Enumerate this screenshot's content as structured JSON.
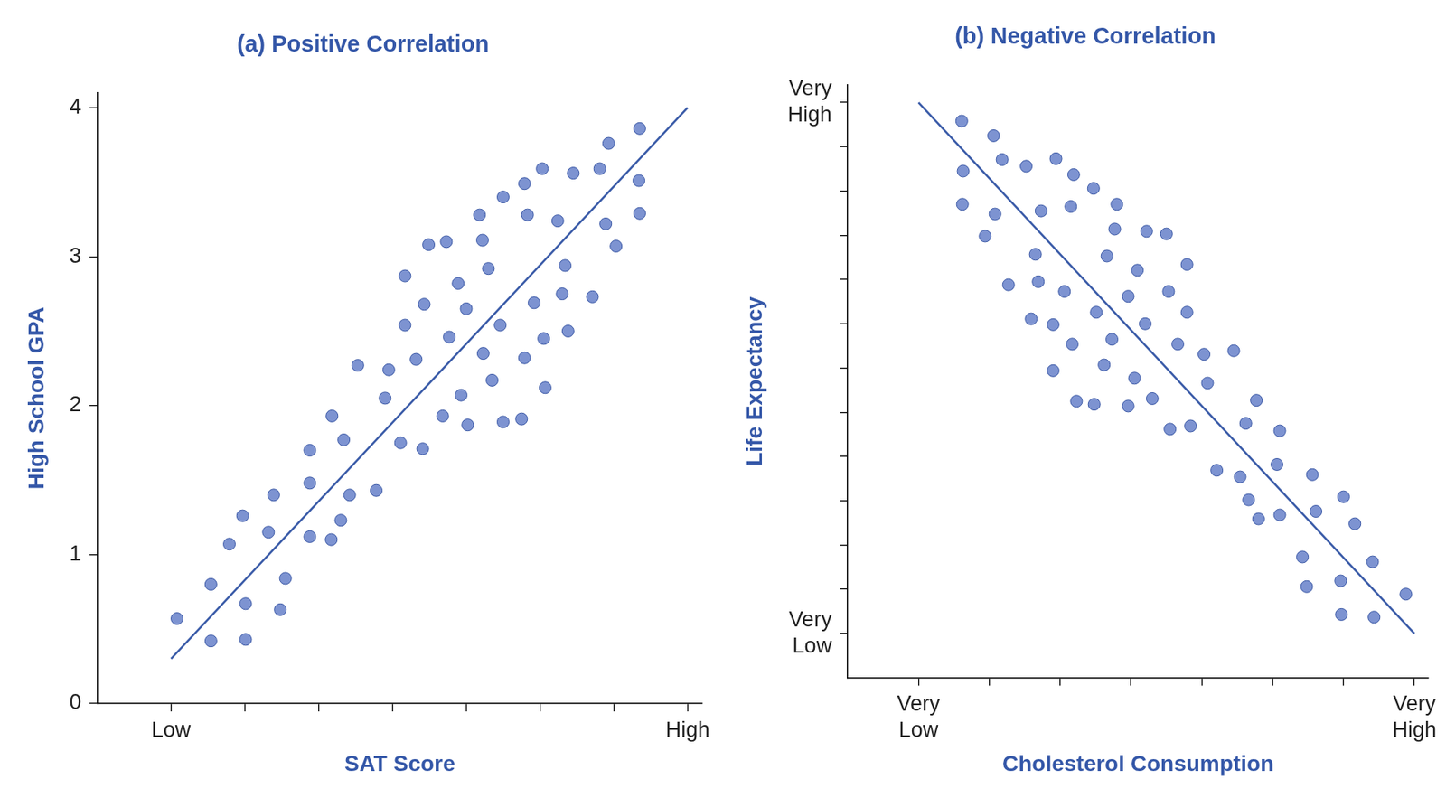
{
  "chart_data": [
    {
      "type": "scatter",
      "title": "(a) Positive Correlation",
      "x_label": "SAT Score",
      "y_label": "High School GPA",
      "xlim": [
        -1,
        7.2
      ],
      "ylim": [
        0,
        4.1
      ],
      "xticks": [
        {
          "value": 0,
          "label": "Low"
        },
        {
          "value": 1,
          "label": null
        },
        {
          "value": 2,
          "label": null
        },
        {
          "value": 3,
          "label": null
        },
        {
          "value": 4,
          "label": null
        },
        {
          "value": 5,
          "label": null
        },
        {
          "value": 6,
          "label": null
        },
        {
          "value": 7,
          "label": "High"
        }
      ],
      "yticks": [
        0,
        1,
        2,
        3,
        4
      ],
      "grid": false,
      "series": [
        {
          "type": "scatter",
          "color": "#7d93d1",
          "marker": "circle",
          "x": [
            0.08,
            0.54,
            0.54,
            0.79,
            0.97,
            1.01,
            1.01,
            1.32,
            1.39,
            1.48,
            1.55,
            1.88,
            1.88,
            1.88,
            2.17,
            2.18,
            2.3,
            2.34,
            2.42,
            2.53,
            2.78,
            2.9,
            2.95,
            3.11,
            3.17,
            3.17,
            3.32,
            3.41,
            3.43,
            3.49,
            3.68,
            3.73,
            3.77,
            3.89,
            3.93,
            4.0,
            4.02,
            4.18,
            4.22,
            4.23,
            4.3,
            4.35,
            4.46,
            4.5,
            4.5,
            4.75,
            4.79,
            4.79,
            4.83,
            4.92,
            5.03,
            5.05,
            5.07,
            5.24,
            5.3,
            5.34,
            5.38,
            5.45,
            5.71,
            5.81,
            5.89,
            5.93,
            6.03,
            6.34,
            6.35,
            6.35
          ],
          "values": [
            0.57,
            0.8,
            0.42,
            1.07,
            1.26,
            0.67,
            0.43,
            1.15,
            1.4,
            0.63,
            0.84,
            1.7,
            1.48,
            1.12,
            1.1,
            1.93,
            1.23,
            1.77,
            1.4,
            2.27,
            1.43,
            2.05,
            2.24,
            1.75,
            2.87,
            2.54,
            2.31,
            1.71,
            2.68,
            3.08,
            1.93,
            3.1,
            2.46,
            2.82,
            2.07,
            2.65,
            1.87,
            3.28,
            3.11,
            2.35,
            2.92,
            2.17,
            2.54,
            1.89,
            3.4,
            1.91,
            3.49,
            2.32,
            3.28,
            2.69,
            3.59,
            2.45,
            2.12,
            3.24,
            2.75,
            2.94,
            2.5,
            3.56,
            2.73,
            3.59,
            3.22,
            3.76,
            3.07,
            3.51,
            3.86,
            3.29
          ]
        },
        {
          "type": "line",
          "color": "#3a5ba8",
          "line_style": "solid",
          "x": [
            0,
            7
          ],
          "values": [
            0.3,
            4.0
          ]
        }
      ]
    },
    {
      "type": "scatter",
      "title": "(b) Negative Correlation",
      "x_label": "Cholesterol Consumption",
      "y_label": "Life Expectancy",
      "xlim": [
        -1,
        7.2
      ],
      "ylim": [
        -1,
        12.4
      ],
      "xticks": [
        {
          "value": 0,
          "label": "Very Low"
        },
        {
          "value": 1,
          "label": null
        },
        {
          "value": 2,
          "label": null
        },
        {
          "value": 3,
          "label": null
        },
        {
          "value": 4,
          "label": null
        },
        {
          "value": 5,
          "label": null
        },
        {
          "value": 6,
          "label": null
        },
        {
          "value": 7,
          "label": "Very High"
        }
      ],
      "yticks": [
        {
          "value": 0,
          "label": "Very Low"
        },
        {
          "value": 1,
          "label": null
        },
        {
          "value": 2,
          "label": null
        },
        {
          "value": 3,
          "label": null
        },
        {
          "value": 4,
          "label": null
        },
        {
          "value": 5,
          "label": null
        },
        {
          "value": 6,
          "label": null
        },
        {
          "value": 7,
          "label": null
        },
        {
          "value": 8,
          "label": null
        },
        {
          "value": 9,
          "label": null
        },
        {
          "value": 10,
          "label": null
        },
        {
          "value": 11,
          "label": null
        },
        {
          "value": 12,
          "label": "Very High"
        }
      ],
      "grid": false,
      "series": [
        {
          "type": "scatter",
          "color": "#7d93d1",
          "marker": "circle",
          "x": [
            0.61,
            0.63,
            0.62,
            1.06,
            1.08,
            0.94,
            1.18,
            1.27,
            1.52,
            1.59,
            1.65,
            1.69,
            1.73,
            1.9,
            1.94,
            1.9,
            2.06,
            2.17,
            2.15,
            2.19,
            2.23,
            2.47,
            2.48,
            2.51,
            2.62,
            2.66,
            2.73,
            2.77,
            2.8,
            2.96,
            2.96,
            3.05,
            3.09,
            3.2,
            3.22,
            3.3,
            3.5,
            3.53,
            3.55,
            3.66,
            3.79,
            3.79,
            3.84,
            4.03,
            4.08,
            4.21,
            4.45,
            4.54,
            4.62,
            4.66,
            4.77,
            4.8,
            5.06,
            5.1,
            5.1,
            5.42,
            5.48,
            5.56,
            5.61,
            5.96,
            5.97,
            6.0,
            6.16,
            6.41,
            6.43,
            6.88
          ],
          "values": [
            11.58,
            10.45,
            9.7,
            11.25,
            9.48,
            8.98,
            10.71,
            7.88,
            10.56,
            7.11,
            8.57,
            7.95,
            9.55,
            6.98,
            10.73,
            5.94,
            7.73,
            6.54,
            9.65,
            10.37,
            5.25,
            10.06,
            5.18,
            7.26,
            6.07,
            8.53,
            6.65,
            9.14,
            9.7,
            5.14,
            7.62,
            5.77,
            8.21,
            7.0,
            9.09,
            5.31,
            9.03,
            7.73,
            4.62,
            6.54,
            8.34,
            7.26,
            4.69,
            6.31,
            5.66,
            3.69,
            6.39,
            3.54,
            4.75,
            3.02,
            5.27,
            2.59,
            3.82,
            4.58,
            2.68,
            1.73,
            1.06,
            3.59,
            2.76,
            1.19,
            0.43,
            3.09,
            2.48,
            1.62,
            0.37,
            0.89
          ]
        },
        {
          "type": "line",
          "color": "#3a5ba8",
          "line_style": "solid",
          "x": [
            0,
            7
          ],
          "values": [
            12,
            0
          ]
        }
      ]
    }
  ]
}
